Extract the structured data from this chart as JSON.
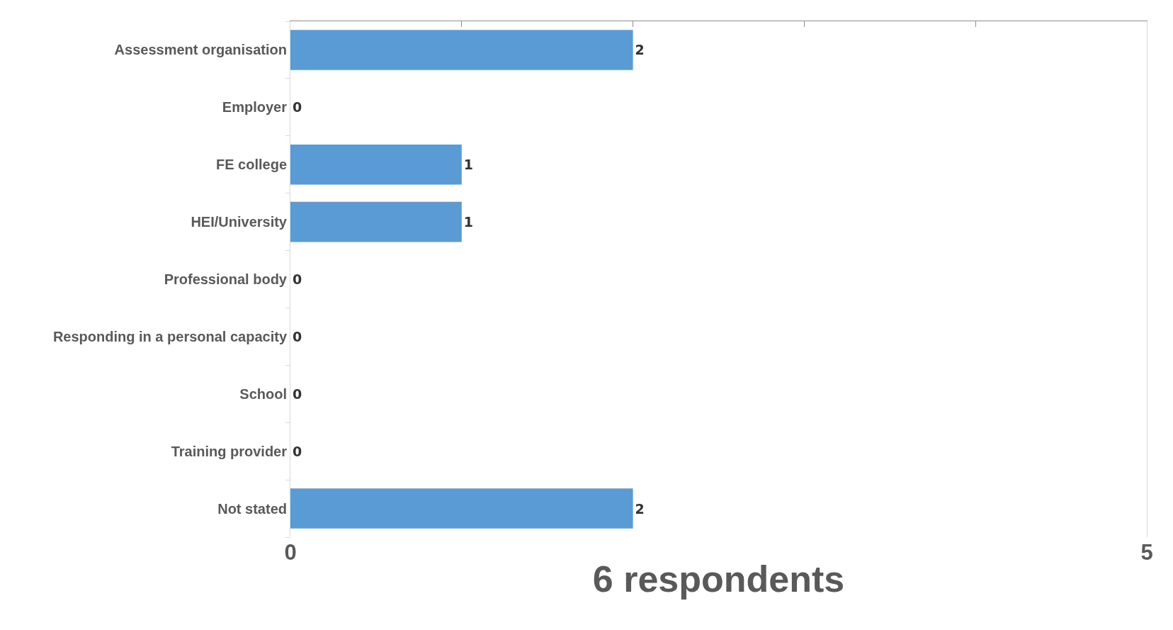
{
  "chart_data": {
    "type": "bar",
    "orientation": "horizontal",
    "xlabel": "6 respondents",
    "categories": [
      "Assessment organisation",
      "Employer",
      "FE college",
      "HEI/University",
      "Professional body",
      "Responding in a personal capacity",
      "School",
      "Training provider",
      "Not stated"
    ],
    "values": [
      2,
      0,
      1,
      1,
      0,
      0,
      0,
      0,
      2
    ],
    "color": "#5b9bd5",
    "xlim": [
      0,
      5
    ],
    "xticks": [
      0,
      {
        "value": 1,
        "label": null
      },
      {
        "value": 2,
        "label": null
      },
      {
        "value": 3,
        "label": null
      },
      {
        "value": 4,
        "label": null
      },
      5
    ],
    "data_labels": true,
    "grid": false
  }
}
